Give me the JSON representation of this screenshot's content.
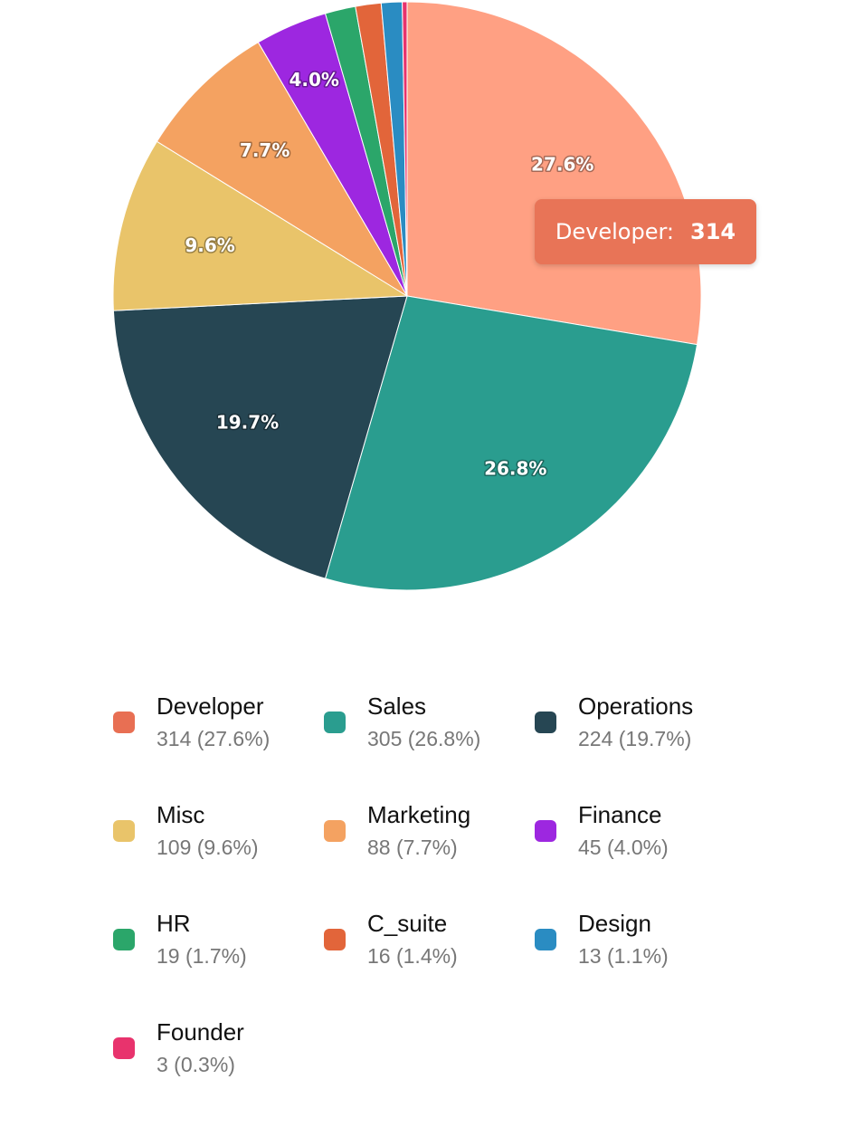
{
  "chart_data": {
    "type": "pie",
    "slices": [
      {
        "name": "Developer",
        "value": 314,
        "percent_label": "27.6%",
        "legend_detail": "314 (27.6%)",
        "color": "#FFA083",
        "swatch_color": "#E86F53"
      },
      {
        "name": "Sales",
        "value": 305,
        "percent_label": "26.8%",
        "legend_detail": "305 (26.8%)",
        "color": "#2A9D8F",
        "swatch_color": "#2A9D8F"
      },
      {
        "name": "Operations",
        "value": 224,
        "percent_label": "19.7%",
        "legend_detail": "224 (19.7%)",
        "color": "#264653",
        "swatch_color": "#264653"
      },
      {
        "name": "Misc",
        "value": 109,
        "percent_label": "9.6%",
        "legend_detail": "109 (9.6%)",
        "color": "#E9C46A",
        "swatch_color": "#E9C46A"
      },
      {
        "name": "Marketing",
        "value": 88,
        "percent_label": "7.7%",
        "legend_detail": "88 (7.7%)",
        "color": "#F4A261",
        "swatch_color": "#F4A261"
      },
      {
        "name": "Finance",
        "value": 45,
        "percent_label": "4.0%",
        "legend_detail": "45 (4.0%)",
        "color": "#9D27E0",
        "swatch_color": "#9D27E0"
      },
      {
        "name": "HR",
        "value": 19,
        "percent_label": "",
        "legend_detail": "19 (1.7%)",
        "color": "#2BA66A",
        "swatch_color": "#2BA66A"
      },
      {
        "name": "C_suite",
        "value": 16,
        "percent_label": "",
        "legend_detail": "16 (1.4%)",
        "color": "#E2653A",
        "swatch_color": "#E2653A"
      },
      {
        "name": "Design",
        "value": 13,
        "percent_label": "",
        "legend_detail": "13 (1.1%)",
        "color": "#2A8CC2",
        "swatch_color": "#2A8CC2"
      },
      {
        "name": "Founder",
        "value": 3,
        "percent_label": "",
        "legend_detail": "3 (0.3%)",
        "color": "#E8336D",
        "swatch_color": "#E8336D"
      }
    ],
    "start_angle": "12 o'clock",
    "direction": "clockwise",
    "legend_position": "bottom"
  },
  "tooltip": {
    "name": "Developer:",
    "value": "314",
    "background": "#E87457"
  }
}
